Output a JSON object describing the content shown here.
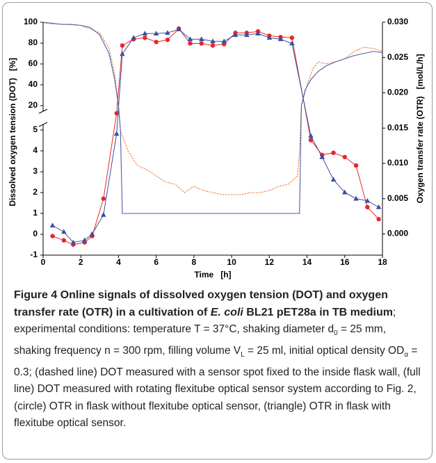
{
  "chart_data": {
    "type": "line",
    "xlabel": "Time   [h]",
    "ylabel": "Dissolved oxygen tension (DOT)   [%]",
    "y2label": "Oxygen transfer rate (OTR)   [mol/L/h]",
    "xlim": [
      0,
      18
    ],
    "xticks": [
      0,
      2,
      4,
      6,
      8,
      10,
      12,
      14,
      16,
      18
    ],
    "ylim": [
      -1,
      100
    ],
    "ybreak": [
      5,
      20
    ],
    "yticks": [
      -1,
      0,
      1,
      2,
      3,
      4,
      5,
      20,
      40,
      60,
      80,
      100
    ],
    "y2lim": [
      -0.003,
      0.03
    ],
    "y2ticks": [
      {
        "value": 0,
        "label": "0.000"
      },
      0.005,
      {
        "value": 0.01,
        "label": "0.010"
      },
      0.015,
      {
        "value": 0.02,
        "label": "0.020"
      },
      0.025,
      {
        "value": 0.03,
        "label": "0.030"
      }
    ],
    "x": [
      0.5,
      1.1,
      1.6,
      2.2,
      2.6,
      3.2,
      3.9,
      4.2,
      4.8,
      5.4,
      6.0,
      6.6,
      7.2,
      7.8,
      8.4,
      9.0,
      9.6,
      10.2,
      10.8,
      11.4,
      12.0,
      12.6,
      13.2,
      14.2,
      14.8,
      15.4,
      16.0,
      16.6,
      17.2,
      17.8
    ],
    "series": [
      {
        "color": "#f07a3a",
        "dashed": true,
        "axis": "y",
        "x": [
          0,
          1,
          2,
          3,
          3.5,
          3.8,
          4.0,
          4.1,
          4.2,
          4.5,
          5,
          5.5,
          6,
          6.5,
          7,
          7.5,
          8,
          8.5,
          9,
          9.5,
          10,
          10.5,
          11,
          11.5,
          12,
          12.5,
          13,
          13.5,
          13.6,
          13.7,
          14,
          14.3,
          14.6,
          15,
          15.5,
          16,
          16.5,
          17,
          17.5,
          18
        ],
        "values": [
          99,
          98,
          97,
          90,
          75,
          50,
          20,
          5,
          4.7,
          4.0,
          3.3,
          3.1,
          2.8,
          2.5,
          2.4,
          2.0,
          2.3,
          2.1,
          2.0,
          1.9,
          1.9,
          1.9,
          2.0,
          2.0,
          2.1,
          2.3,
          2.4,
          2.8,
          4,
          20,
          40,
          55,
          62,
          60,
          62,
          65,
          72,
          76,
          75,
          72
        ]
      },
      {
        "color": "#4a5cb0",
        "dashed": false,
        "axis": "y",
        "x": [
          0,
          0.5,
          1,
          1.5,
          2,
          2.5,
          3,
          3.5,
          3.8,
          4.0,
          4.1,
          4.2,
          13.6,
          13.7,
          13.9,
          14.2,
          14.6,
          15,
          15.5,
          16,
          16.5,
          17,
          17.5,
          18
        ],
        "values": [
          100,
          99,
          98,
          98,
          97,
          95,
          88,
          70,
          45,
          20,
          5,
          1,
          1,
          20,
          35,
          45,
          53,
          58,
          62,
          65,
          68,
          70,
          72,
          71
        ]
      },
      {
        "color": "#e8262b",
        "marker": "circle",
        "axis": "y2",
        "values": [
          -0.0003,
          -0.0009,
          -0.0015,
          -0.0012,
          -0.0003,
          0.005,
          0.0171,
          0.0267,
          0.0276,
          0.0278,
          0.0272,
          0.0275,
          0.0291,
          0.027,
          0.027,
          0.0267,
          0.0269,
          0.0285,
          0.0285,
          0.0287,
          0.0281,
          0.0279,
          0.0278,
          0.0133,
          0.0112,
          0.0115,
          0.0109,
          0.0097,
          0.0038,
          0.0021
        ]
      },
      {
        "color": "#3a4fa0",
        "marker": "triangle",
        "axis": "y2",
        "values": [
          0.0012,
          0.0003,
          -0.0012,
          -0.0009,
          0.0,
          0.0027,
          0.0142,
          0.0255,
          0.0278,
          0.0284,
          0.0284,
          0.0285,
          0.029,
          0.0276,
          0.0276,
          0.0273,
          0.0273,
          0.0282,
          0.0282,
          0.0284,
          0.0278,
          0.0276,
          0.027,
          0.0139,
          0.0109,
          0.0077,
          0.0059,
          0.005,
          0.0047,
          0.0038
        ]
      }
    ]
  },
  "caption": [
    {
      "style": "bold",
      "text": "Figure 4 Online signals of dissolved oxygen tension (DOT) and oxygen transfer rate (OTR) in a cultivation of "
    },
    {
      "style": "bold-italic",
      "text": "E. coli"
    },
    {
      "style": "bold",
      "text": " BL21 pET28a in TB medium"
    },
    {
      "style": "normal",
      "text": "; experimental conditions: temperature T = 37°C, shaking diameter d"
    },
    {
      "style": "sub",
      "text": "0"
    },
    {
      "style": "normal",
      "text": " = 25 mm, shaking frequency n = 300 rpm, filling volume V"
    },
    {
      "style": "sub",
      "text": "L"
    },
    {
      "style": "normal",
      "text": " = 25 ml, initial optical density OD"
    },
    {
      "style": "sub",
      "text": "α"
    },
    {
      "style": "normal",
      "text": " = 0.3; (dashed line) DOT measured with a sensor spot fixed to the inside flask wall, (full line) DOT measured with rotating flexitube optical sensor system according to Fig. 2, (circle) OTR in flask without flexitube optical sensor, (triangle) OTR in flask with flexitube optical sensor."
    }
  ]
}
